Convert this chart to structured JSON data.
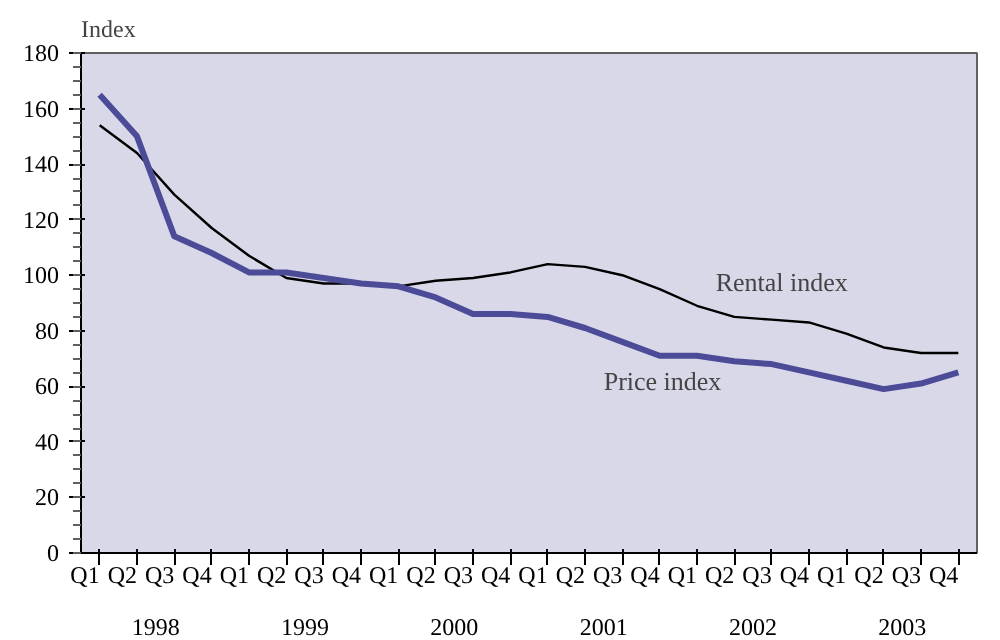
{
  "chart_data": {
    "type": "line",
    "ylabel": "Index",
    "categories": [
      "Q1",
      "Q2",
      "Q3",
      "Q4",
      "Q1",
      "Q2",
      "Q3",
      "Q4",
      "Q1",
      "Q2",
      "Q3",
      "Q4",
      "Q1",
      "Q2",
      "Q3",
      "Q4",
      "Q1",
      "Q2",
      "Q3",
      "Q4",
      "Q1",
      "Q2",
      "Q3",
      "Q4"
    ],
    "annotations": [
      "1998",
      "1999",
      "2000",
      "2001",
      "2002",
      "2003"
    ],
    "series": [
      {
        "name": "Rental index",
        "color": "#000000",
        "values": [
          154,
          144,
          129,
          117,
          107,
          99,
          97,
          97,
          96,
          98,
          99,
          101,
          104,
          103,
          100,
          95,
          89,
          85,
          84,
          83,
          79,
          74,
          72,
          72
        ]
      },
      {
        "name": "Price index",
        "color": "#4b4b98",
        "values": [
          165,
          150,
          114,
          108,
          101,
          101,
          99,
          97,
          96,
          92,
          86,
          86,
          85,
          81,
          76,
          71,
          71,
          69,
          68,
          65,
          62,
          59,
          61,
          65
        ]
      }
    ],
    "ylim": [
      0,
      180
    ],
    "yticks": [
      0,
      20,
      40,
      60,
      80,
      100,
      120,
      140,
      160,
      180
    ],
    "grid": false
  }
}
